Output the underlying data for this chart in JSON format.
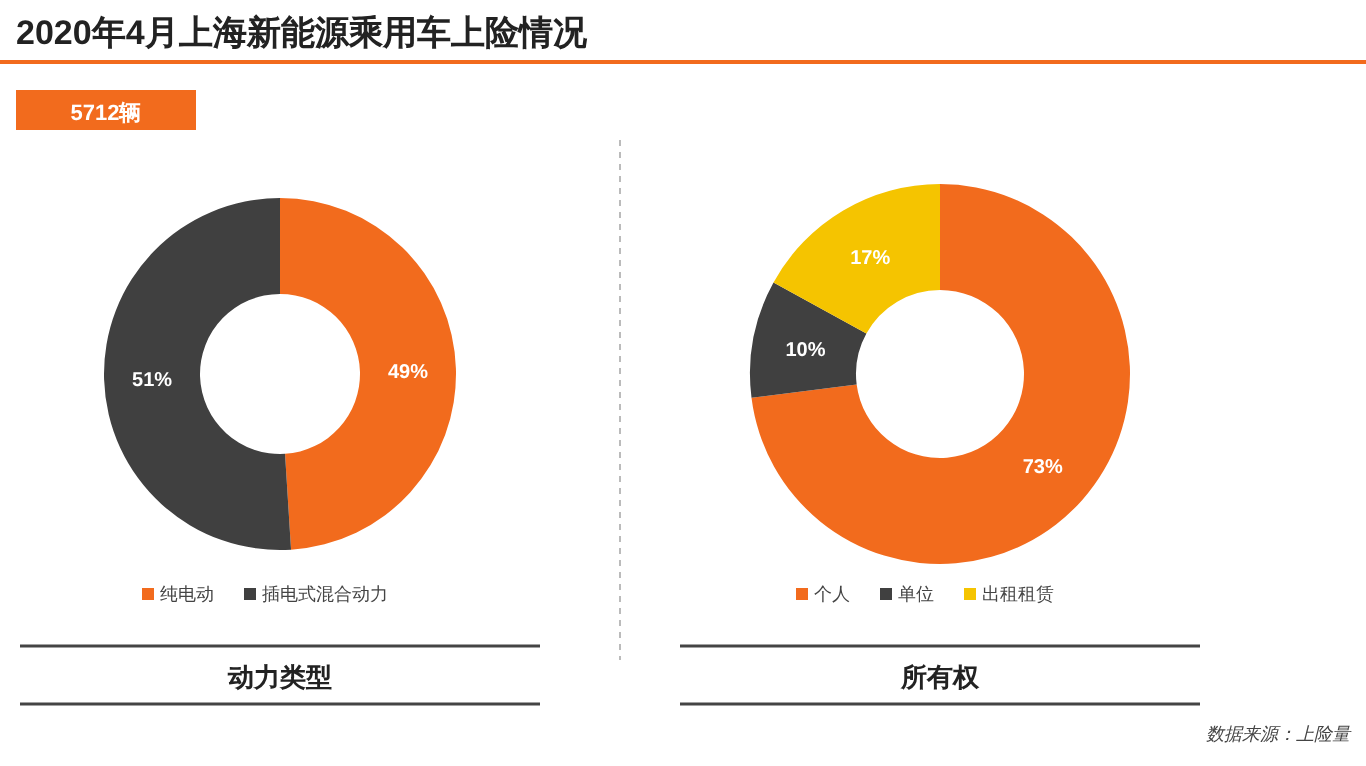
{
  "chart_data": [
    {
      "type": "donut",
      "title": "2020年4月上海新能源乘用车上险情况",
      "subtitle": "5712辆",
      "xlabel": "动力类型",
      "categories": [
        "纯电动",
        "插电式混合动力"
      ],
      "values": [
        49,
        51
      ],
      "colors": [
        "#f26b1d",
        "#404040"
      ],
      "value_labels": [
        "49%",
        "51%"
      ],
      "legend": "bottom"
    },
    {
      "type": "donut",
      "xlabel": "所有权",
      "categories": [
        "个人",
        "单位",
        "出租租赁"
      ],
      "values": [
        73,
        10,
        17
      ],
      "colors": [
        "#f26b1d",
        "#404040",
        "#f5c400"
      ],
      "value_labels": [
        "73%",
        "10%",
        "17%"
      ],
      "legend": "bottom",
      "annotations": [
        "数据来源：上险量"
      ]
    }
  ]
}
